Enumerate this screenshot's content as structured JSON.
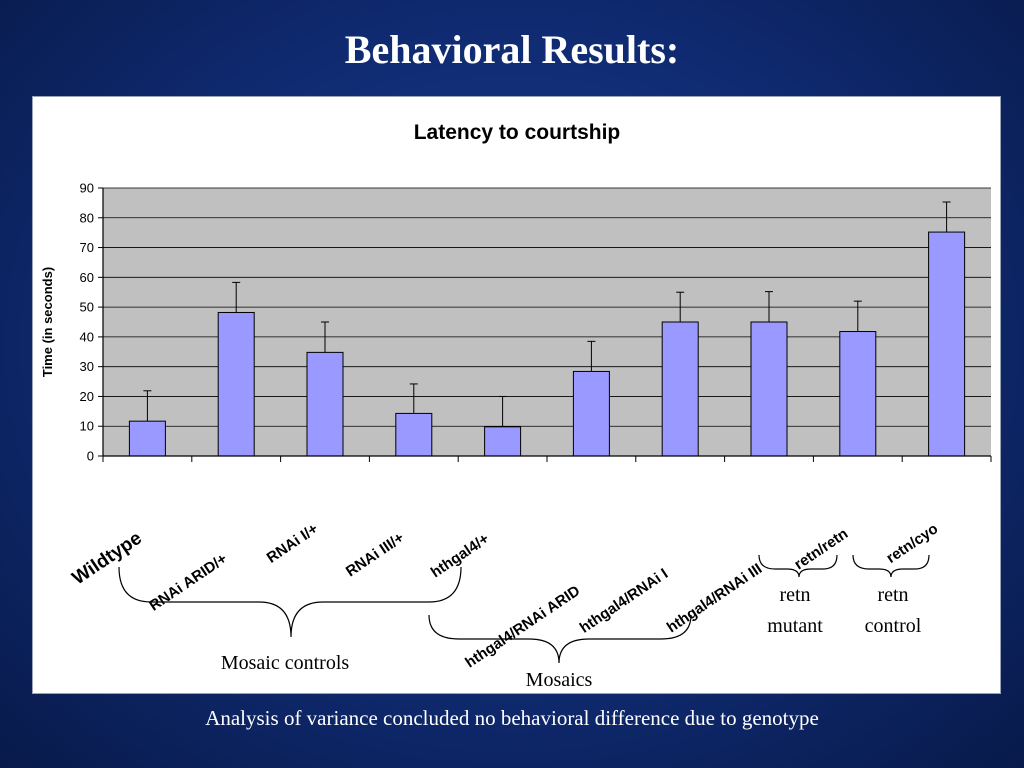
{
  "slide": {
    "title": "Behavioral Results:",
    "footer": "Analysis of variance concluded no behavioral difference due to genotype"
  },
  "colors": {
    "bar_fill": "#9999ff",
    "plot_bg": "#c0c0c0",
    "slide_bg": "#0f2a70"
  },
  "chart_data": {
    "type": "bar",
    "title": "Latency to courtship",
    "xlabel": "",
    "ylabel": "Time (in seconds)",
    "ylim": [
      0,
      90
    ],
    "yticks": [
      0,
      10,
      20,
      30,
      40,
      50,
      60,
      70,
      80,
      90
    ],
    "grid": true,
    "categories": [
      "Wildtype",
      "RNAi ARID/+",
      "RNAi I/+",
      "RNAi III/+",
      "hthgal4/+",
      "hthgal4/RNAi ARID",
      "hthgal4/RNAi I",
      "hthgal4/RNAi III",
      "retn/retn",
      "retn/cyo"
    ],
    "values": [
      11.7,
      48.2,
      34.8,
      14.3,
      9.8,
      28.4,
      45.0,
      45.0,
      41.8,
      75.2
    ],
    "error": [
      10.2,
      10.1,
      10.2,
      9.9,
      10.2,
      10.1,
      10.0,
      10.2,
      10.2,
      10.1
    ]
  },
  "annotations": {
    "mosaic_controls": "Mosaic controls",
    "mosaics": "Mosaics",
    "retn_mutant": [
      "retn",
      "mutant"
    ],
    "retn_control": [
      "retn",
      "control"
    ]
  }
}
